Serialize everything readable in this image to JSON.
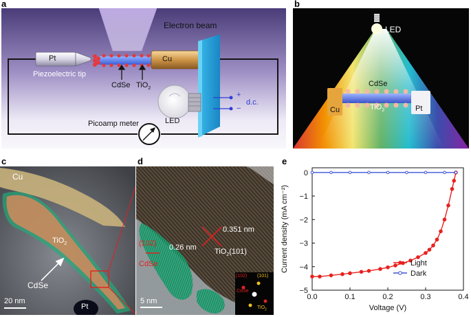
{
  "panel_labels": {
    "a": "a",
    "b": "b",
    "c": "c",
    "d": "d",
    "e": "e"
  },
  "panel_a": {
    "electron_beam": "Electron beam",
    "pt": "Pt",
    "cu": "Cu",
    "piezo_tip": "Piezoelectric tip",
    "cdse": "CdSe",
    "tio2": "TiO",
    "tio2_sub": "2",
    "led": "LED",
    "picoamp": "Picoamp meter",
    "plus": "+",
    "minus": "−",
    "dc": "d.c."
  },
  "panel_b": {
    "led": "LED",
    "cdse": "CdSe",
    "cu": "Cu",
    "tio2": "TiO",
    "tio2_sub": "2",
    "pt": "Pt"
  },
  "panel_c": {
    "cu": "Cu",
    "tio2": "TiO",
    "tio2_sub": "2",
    "cdse": "CdSe",
    "scale": "20 nm",
    "pt": "Pt"
  },
  "panel_d": {
    "d1": "0.351 nm",
    "tio2_101": "TiO",
    "tio2_101_sub": "2",
    "tio2_101_hkl": "(101)",
    "hkl102": "(102)",
    "cdse": "CdSe",
    "d2": "0.26 nm",
    "scale": "5 nm",
    "fft_102": "(102)",
    "fft_101": "(101)",
    "fft_cdse": "CdSe",
    "fft_tio2": "TiO",
    "fft_tio2_sub": "2"
  },
  "colors": {
    "light": "#e8211e",
    "dark": "#3a55d6",
    "cdse_green": "#1fae7a",
    "tio2_orange": "#e08a58"
  },
  "chart_data": {
    "type": "line",
    "xlabel": "Voltage (V)",
    "ylabel": "Current density (mA cm⁻²)",
    "xlim": [
      0.0,
      0.4
    ],
    "ylim": [
      -5,
      0.2
    ],
    "xticks": [
      0.0,
      0.1,
      0.2,
      0.3,
      0.4
    ],
    "xtick_labels": [
      "0.0",
      "0.1",
      "0.2",
      "0.3",
      "0.4"
    ],
    "yticks": [
      0,
      -1,
      -2,
      -3,
      -4,
      -5
    ],
    "ytick_labels": [
      "0",
      "−1",
      "−2",
      "−3",
      "−4",
      "−5"
    ],
    "legend_position": "bottom-right",
    "series": [
      {
        "name": "Light",
        "x": [
          0.0,
          0.02,
          0.05,
          0.08,
          0.1,
          0.13,
          0.15,
          0.18,
          0.2,
          0.22,
          0.24,
          0.26,
          0.28,
          0.3,
          0.31,
          0.32,
          0.33,
          0.34,
          0.35,
          0.36,
          0.37,
          0.375,
          0.38
        ],
        "y": [
          -4.42,
          -4.42,
          -4.37,
          -4.32,
          -4.28,
          -4.22,
          -4.18,
          -4.1,
          -4.03,
          -3.95,
          -3.85,
          -3.74,
          -3.6,
          -3.42,
          -3.28,
          -3.1,
          -2.85,
          -2.5,
          -2.0,
          -1.4,
          -0.7,
          -0.35,
          0.0
        ]
      },
      {
        "name": "Dark",
        "x": [
          0.0,
          0.05,
          0.1,
          0.15,
          0.2,
          0.25,
          0.3,
          0.35,
          0.38
        ],
        "y": [
          0.0,
          0.0,
          0.0,
          0.0,
          0.0,
          0.0,
          0.0,
          0.0,
          0.0
        ]
      }
    ]
  }
}
